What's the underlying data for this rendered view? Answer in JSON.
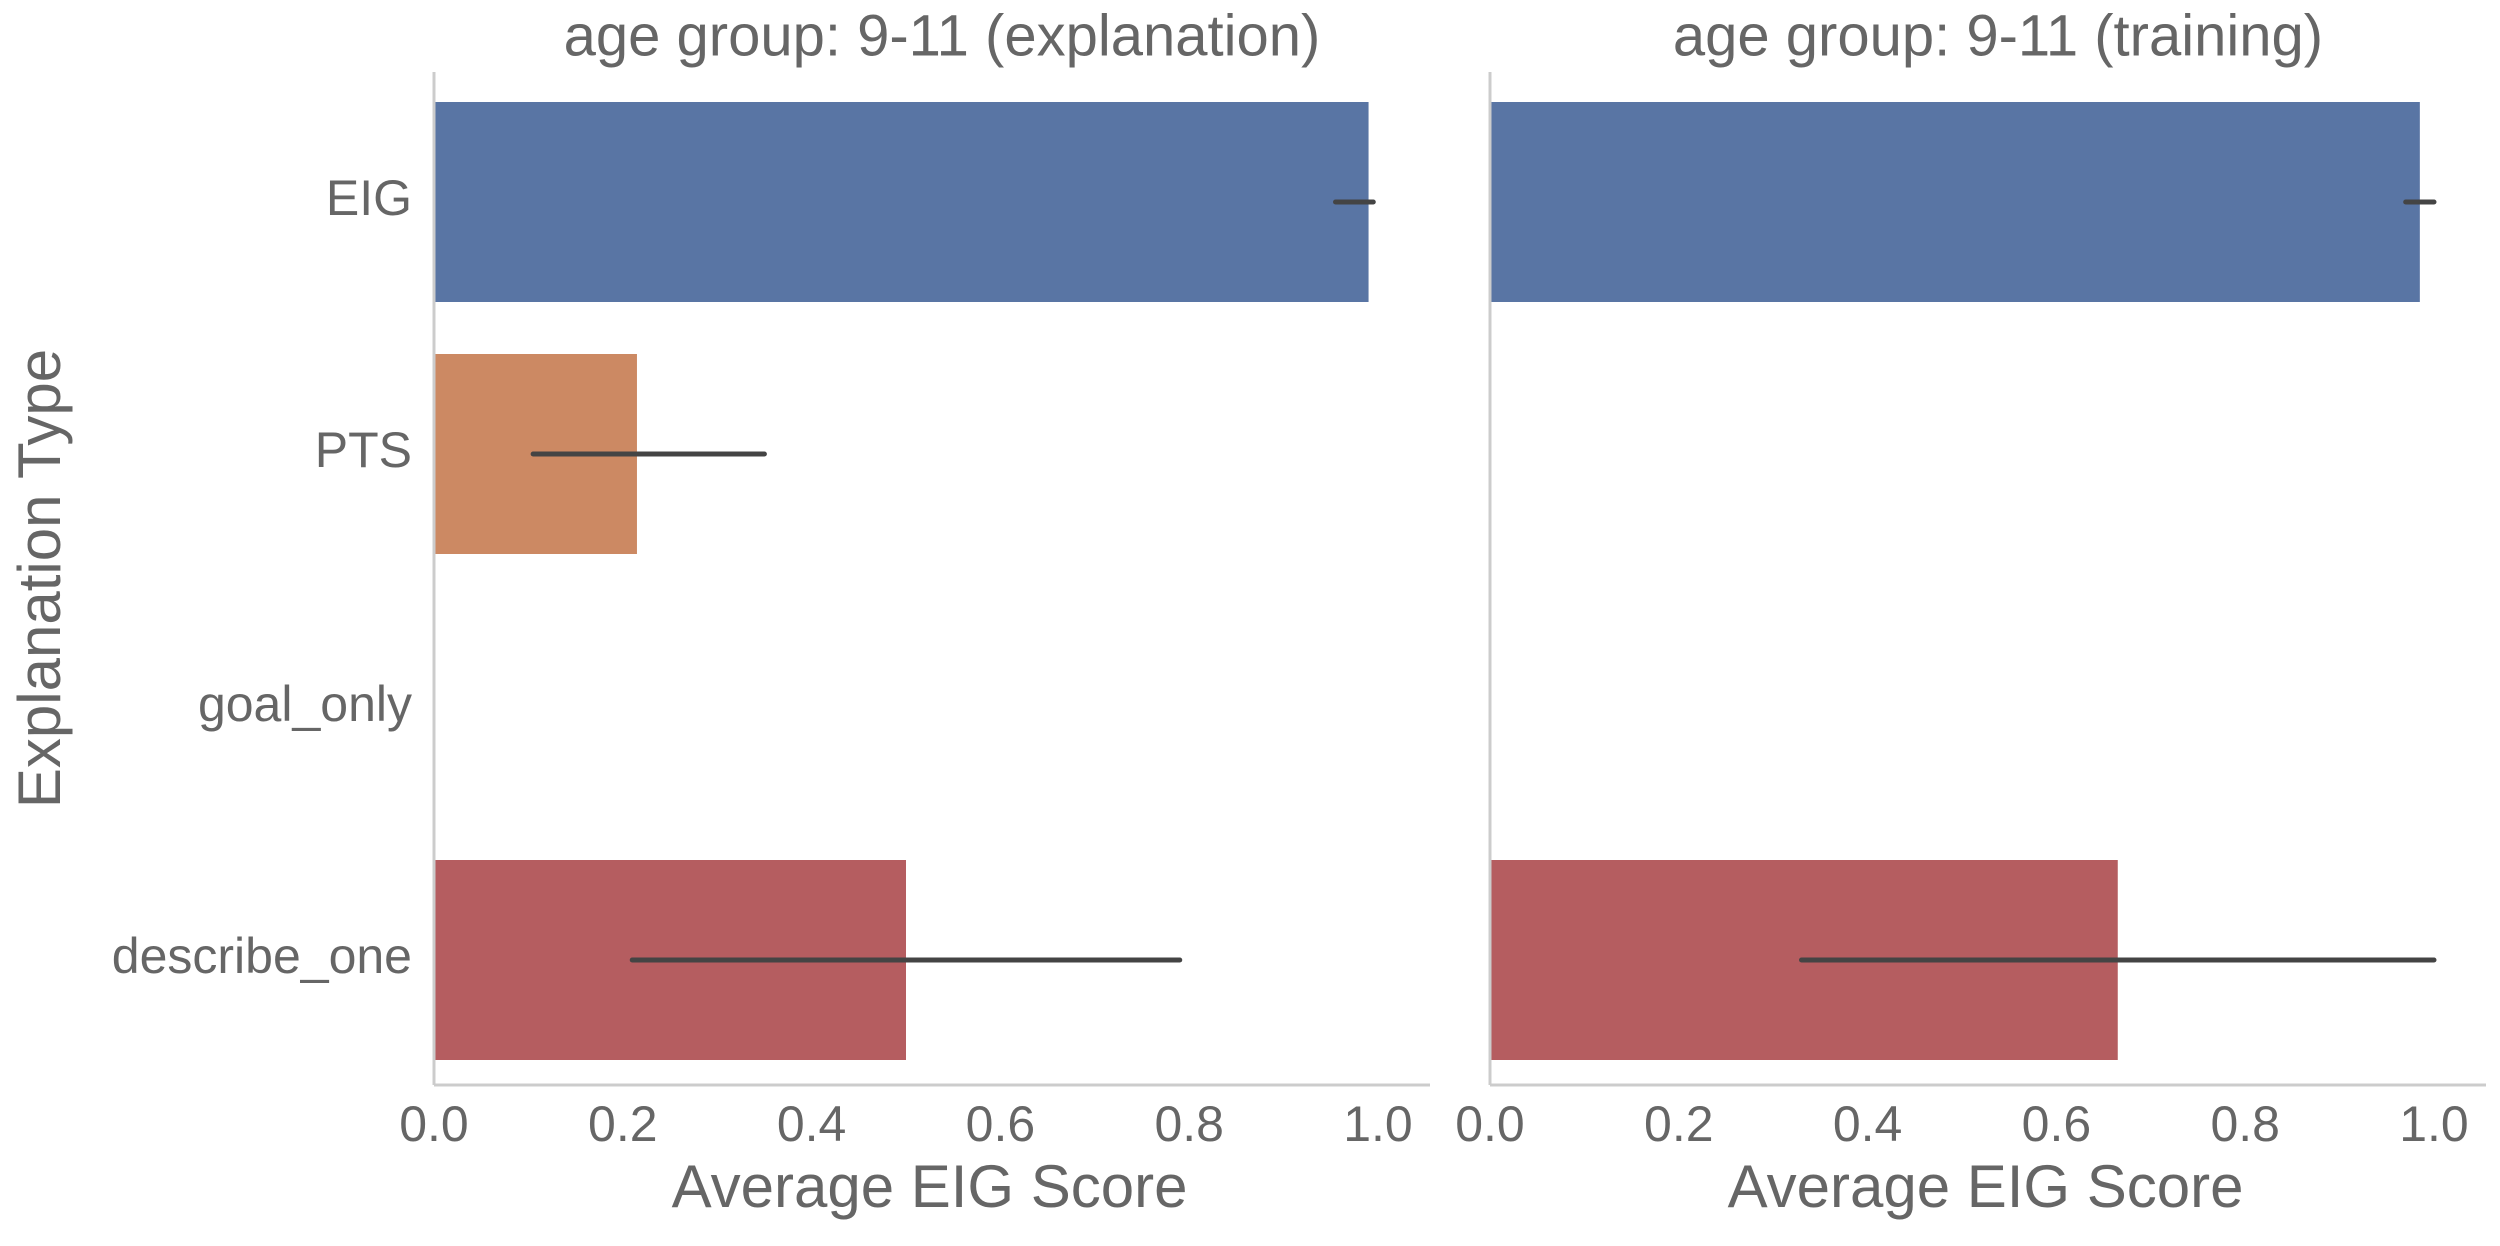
{
  "chart_data": {
    "type": "bar",
    "orientation": "horizontal",
    "ylabel": "Explanation Type",
    "categories": [
      "EIG",
      "PTS",
      "goal_only",
      "describe_one"
    ],
    "category_colors": [
      "#5975a4",
      "#cc8963",
      "#5f9e6e",
      "#b55d60"
    ],
    "xlim": [
      0,
      1.05
    ],
    "xticks": [
      "0.0",
      "0.2",
      "0.4",
      "0.6",
      "0.8",
      "1.0"
    ],
    "grid": false,
    "panels": [
      {
        "title": "age group: 9-11 (explanation)",
        "xlabel": "Average EIG Score",
        "values": [
          0.99,
          0.215,
          null,
          0.5
        ],
        "error_low": [
          0.955,
          0.105,
          null,
          0.21
        ],
        "error_high": [
          0.995,
          0.35,
          null,
          0.79
        ]
      },
      {
        "title": "age group: 9-11 (training)",
        "xlabel": "Average EIG Score",
        "values": [
          0.985,
          null,
          null,
          0.665
        ],
        "error_low": [
          0.97,
          null,
          null,
          0.33
        ],
        "error_high": [
          1.0,
          null,
          null,
          1.0
        ]
      }
    ]
  }
}
